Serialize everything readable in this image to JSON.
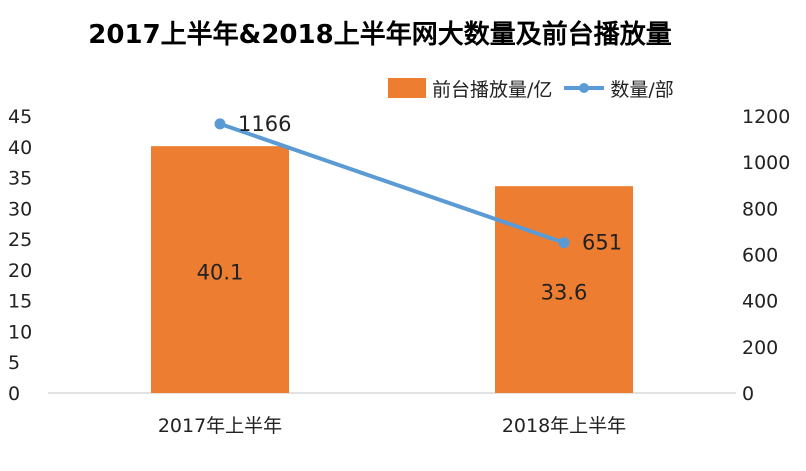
{
  "colors": {
    "bar": "#ED7D31",
    "line": "#5B9BD5",
    "axis": "#d9d9d9",
    "text": "#222222"
  },
  "chart_data": {
    "type": "bar",
    "title": "2017上半年&2018上半年网大数量及前台播放量",
    "categories": [
      "2017年上半年",
      "2018年上半年"
    ],
    "series": [
      {
        "name": "前台播放量/亿",
        "type": "bar",
        "axis": "left",
        "values": [
          40.1,
          33.6
        ],
        "labels": [
          "40.1",
          "33.6"
        ]
      },
      {
        "name": "数量/部",
        "type": "line",
        "axis": "right",
        "values": [
          1166,
          651
        ],
        "labels": [
          "1166",
          "651"
        ]
      }
    ],
    "ylim_left": [
      0,
      45
    ],
    "yticks_left": [
      "0",
      "5",
      "10",
      "15",
      "20",
      "25",
      "30",
      "35",
      "40",
      "45"
    ],
    "ylim_right": [
      0,
      1200
    ],
    "yticks_right": [
      "0",
      "200",
      "400",
      "600",
      "800",
      "1000",
      "1200"
    ],
    "legend_position": "top-right",
    "grid": false
  }
}
